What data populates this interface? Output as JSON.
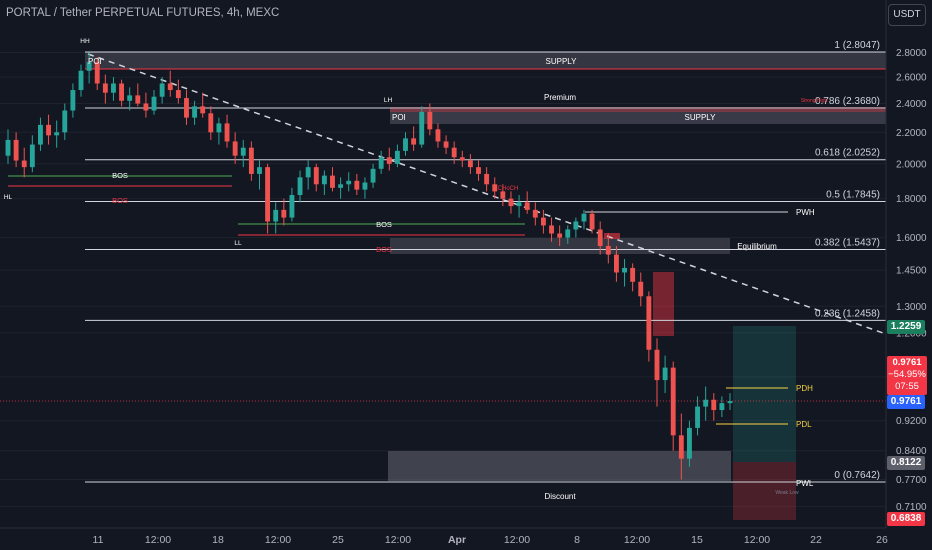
{
  "header": {
    "title": "PORTAL / Tether PERPETUAL FUTURES, 4h, MEXC",
    "quote_currency": "USDT"
  },
  "price_tags": {
    "tag_1": "1.2259",
    "last_price": "0.9761",
    "change": "−54.95%",
    "countdown": "07:55",
    "tag_2": "0.9761",
    "tag_3": "0.8122",
    "tag_4": "0.6838"
  },
  "colors": {
    "background": "#131722",
    "up": "#26a69a",
    "down": "#ef5350",
    "level_line": "#d1d4dc",
    "bos_green": "#4caf50",
    "bos_red": "#f23645",
    "pd_line": "#f5d442",
    "zone_grey": "#787b86"
  },
  "chart_data": {
    "type": "candlestick",
    "y_scale": "log",
    "ylim": [
      0.68,
      3.0
    ],
    "y_ticks": [
      "2.8000",
      "2.6000",
      "2.4000",
      "2.2000",
      "2.0000",
      "1.8000",
      "1.6000",
      "1.4500",
      "1.3000",
      "1.2000",
      "1.0500",
      "0.9200",
      "0.8400",
      "0.7700",
      "0.7100"
    ],
    "x_ticks": [
      "11",
      "12:00",
      "18",
      "12:00",
      "25",
      "12:00",
      "Apr",
      "12:00",
      "8",
      "12:00",
      "15",
      "12:00",
      "22",
      "26"
    ],
    "fib_levels": [
      {
        "label": "1 (2.8047)",
        "value": 2.8047
      },
      {
        "label": "0.786 (2.3680)",
        "value": 2.368
      },
      {
        "label": "0.618 (2.0252)",
        "value": 2.0252
      },
      {
        "label": "0.5 (1.7845)",
        "value": 1.7845
      },
      {
        "label": "0.382 (1.5437)",
        "value": 1.5437
      },
      {
        "label": "0.236 (1.2458)",
        "value": 1.2458
      },
      {
        "label": "0 (0.7642)",
        "value": 0.7642
      }
    ],
    "annotations": {
      "supply_1": "SUPPLY",
      "supply_2": "SUPPLY",
      "poi_1": "POI",
      "poi_2": "POI",
      "premium": "Premium",
      "discount": "Discount",
      "equilibrium": "Equilibrium",
      "bos_1": "BOS",
      "bos_2": "BOS",
      "bos_red_1": "BOS",
      "bos_red_2": "BOS",
      "hh": "HH",
      "hl": "HL",
      "lh": "LH",
      "ll": "LL",
      "pwh": "PWH",
      "pdh": "PDH",
      "pdl": "PDL",
      "pwl": "PWL",
      "strong_high": "Strong High",
      "weak_low": "Weak Low",
      "choch": "CHoCH"
    },
    "ohlc": [
      [
        2.05,
        2.22,
        2.0,
        2.15
      ],
      [
        2.15,
        2.2,
        1.98,
        2.02
      ],
      [
        2.02,
        2.1,
        1.92,
        1.98
      ],
      [
        1.98,
        2.18,
        1.95,
        2.12
      ],
      [
        2.12,
        2.3,
        2.08,
        2.25
      ],
      [
        2.25,
        2.32,
        2.12,
        2.18
      ],
      [
        2.18,
        2.28,
        2.1,
        2.2
      ],
      [
        2.2,
        2.4,
        2.15,
        2.35
      ],
      [
        2.35,
        2.55,
        2.3,
        2.5
      ],
      [
        2.5,
        2.7,
        2.45,
        2.65
      ],
      [
        2.65,
        2.8,
        2.55,
        2.72
      ],
      [
        2.72,
        2.76,
        2.5,
        2.55
      ],
      [
        2.55,
        2.62,
        2.4,
        2.48
      ],
      [
        2.48,
        2.6,
        2.42,
        2.55
      ],
      [
        2.55,
        2.58,
        2.38,
        2.42
      ],
      [
        2.42,
        2.52,
        2.35,
        2.46
      ],
      [
        2.46,
        2.55,
        2.38,
        2.4
      ],
      [
        2.4,
        2.48,
        2.3,
        2.35
      ],
      [
        2.35,
        2.5,
        2.32,
        2.45
      ],
      [
        2.45,
        2.6,
        2.4,
        2.55
      ],
      [
        2.55,
        2.65,
        2.45,
        2.5
      ],
      [
        2.5,
        2.58,
        2.4,
        2.44
      ],
      [
        2.44,
        2.5,
        2.25,
        2.3
      ],
      [
        2.3,
        2.42,
        2.25,
        2.38
      ],
      [
        2.38,
        2.48,
        2.3,
        2.33
      ],
      [
        2.33,
        2.38,
        2.15,
        2.2
      ],
      [
        2.2,
        2.3,
        2.12,
        2.26
      ],
      [
        2.26,
        2.32,
        2.1,
        2.14
      ],
      [
        2.14,
        2.2,
        2.0,
        2.05
      ],
      [
        2.05,
        2.15,
        1.98,
        2.1
      ],
      [
        2.1,
        2.14,
        1.9,
        1.94
      ],
      [
        1.94,
        2.02,
        1.85,
        1.98
      ],
      [
        1.98,
        2.0,
        1.62,
        1.68
      ],
      [
        1.68,
        1.78,
        1.62,
        1.74
      ],
      [
        1.74,
        1.8,
        1.66,
        1.7
      ],
      [
        1.7,
        1.86,
        1.68,
        1.82
      ],
      [
        1.82,
        1.96,
        1.78,
        1.92
      ],
      [
        1.92,
        2.02,
        1.85,
        1.98
      ],
      [
        1.98,
        2.0,
        1.84,
        1.88
      ],
      [
        1.88,
        1.96,
        1.82,
        1.93
      ],
      [
        1.93,
        1.98,
        1.84,
        1.86
      ],
      [
        1.86,
        1.92,
        1.8,
        1.88
      ],
      [
        1.88,
        1.95,
        1.84,
        1.9
      ],
      [
        1.9,
        1.94,
        1.82,
        1.85
      ],
      [
        1.85,
        1.92,
        1.8,
        1.89
      ],
      [
        1.89,
        2.0,
        1.86,
        1.97
      ],
      [
        1.97,
        2.08,
        1.94,
        2.04
      ],
      [
        2.04,
        2.1,
        1.96,
        2.0
      ],
      [
        2.0,
        2.12,
        1.98,
        2.08
      ],
      [
        2.08,
        2.2,
        2.05,
        2.16
      ],
      [
        2.16,
        2.24,
        2.08,
        2.12
      ],
      [
        2.12,
        2.38,
        2.1,
        2.34
      ],
      [
        2.34,
        2.4,
        2.18,
        2.22
      ],
      [
        2.22,
        2.26,
        2.1,
        2.14
      ],
      [
        2.14,
        2.18,
        2.06,
        2.1
      ],
      [
        2.1,
        2.14,
        2.0,
        2.04
      ],
      [
        2.04,
        2.08,
        1.98,
        2.02
      ],
      [
        2.02,
        2.06,
        1.94,
        1.98
      ],
      [
        1.98,
        2.02,
        1.9,
        1.94
      ],
      [
        1.94,
        1.98,
        1.84,
        1.88
      ],
      [
        1.88,
        1.92,
        1.8,
        1.84
      ],
      [
        1.84,
        1.88,
        1.76,
        1.8
      ],
      [
        1.8,
        1.84,
        1.72,
        1.76
      ],
      [
        1.76,
        1.82,
        1.7,
        1.78
      ],
      [
        1.78,
        1.84,
        1.72,
        1.74
      ],
      [
        1.74,
        1.78,
        1.66,
        1.7
      ],
      [
        1.7,
        1.74,
        1.62,
        1.66
      ],
      [
        1.66,
        1.7,
        1.58,
        1.62
      ],
      [
        1.62,
        1.66,
        1.56,
        1.6
      ],
      [
        1.6,
        1.66,
        1.57,
        1.64
      ],
      [
        1.64,
        1.7,
        1.6,
        1.68
      ],
      [
        1.68,
        1.74,
        1.64,
        1.72
      ],
      [
        1.72,
        1.74,
        1.62,
        1.64
      ],
      [
        1.64,
        1.68,
        1.52,
        1.56
      ],
      [
        1.56,
        1.62,
        1.48,
        1.52
      ],
      [
        1.52,
        1.56,
        1.4,
        1.44
      ],
      [
        1.44,
        1.5,
        1.38,
        1.46
      ],
      [
        1.46,
        1.48,
        1.36,
        1.4
      ],
      [
        1.4,
        1.44,
        1.3,
        1.34
      ],
      [
        1.34,
        1.36,
        1.1,
        1.14
      ],
      [
        1.14,
        1.18,
        0.96,
        1.04
      ],
      [
        1.04,
        1.12,
        1.0,
        1.08
      ],
      [
        1.08,
        1.1,
        0.84,
        0.88
      ],
      [
        0.88,
        0.94,
        0.77,
        0.82
      ],
      [
        0.82,
        0.92,
        0.8,
        0.9
      ],
      [
        0.9,
        0.99,
        0.88,
        0.96
      ],
      [
        0.96,
        1.02,
        0.92,
        0.98
      ],
      [
        0.98,
        1.0,
        0.92,
        0.95
      ],
      [
        0.95,
        0.99,
        0.93,
        0.97
      ],
      [
        0.97,
        1.0,
        0.95,
        0.976
      ]
    ]
  }
}
